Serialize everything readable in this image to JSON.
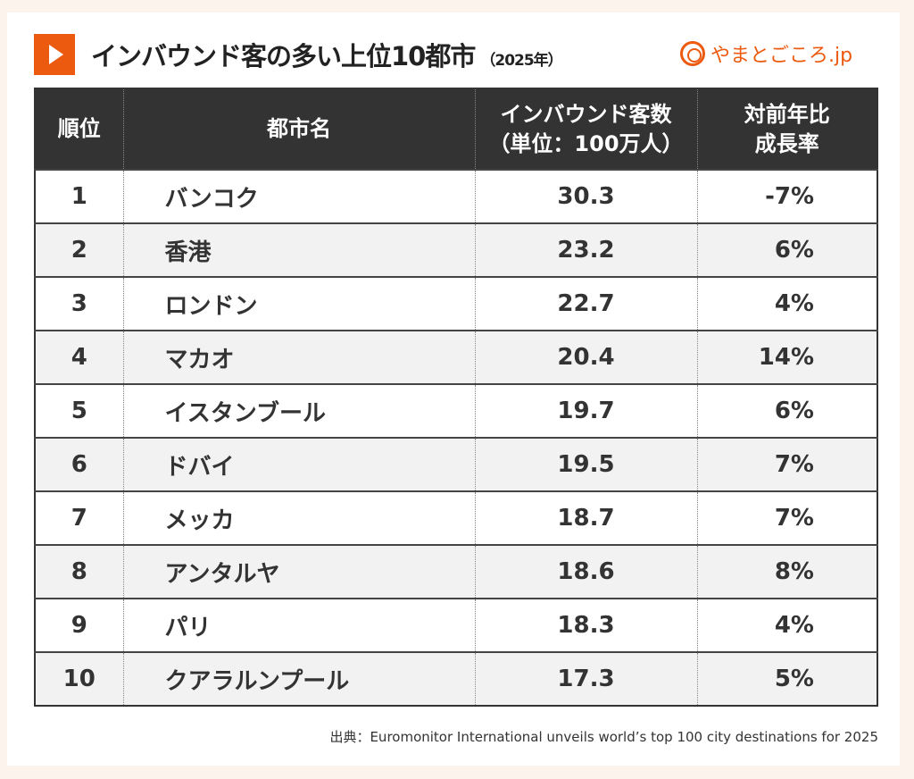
{
  "header": {
    "title": "インバウンド客の多い上位10都市",
    "year": "（2025年）",
    "logo_text": "やまとごころ.jp",
    "accent_color": "#ec5a10"
  },
  "chart_data": {
    "type": "table",
    "columns": [
      "順位",
      "都市名",
      "インバウンド客数",
      "（単位：100万人）",
      "対前年比",
      "成長率"
    ],
    "rows": [
      {
        "rank": "1",
        "city": "バンコク",
        "visitors": "30.3",
        "growth": "-7%"
      },
      {
        "rank": "2",
        "city": "香港",
        "visitors": "23.2",
        "growth": "6%"
      },
      {
        "rank": "3",
        "city": "ロンドン",
        "visitors": "22.7",
        "growth": "4%"
      },
      {
        "rank": "4",
        "city": "マカオ",
        "visitors": "20.4",
        "growth": "14%"
      },
      {
        "rank": "5",
        "city": "イスタンブール",
        "visitors": "19.7",
        "growth": "6%"
      },
      {
        "rank": "6",
        "city": "ドバイ",
        "visitors": "19.5",
        "growth": "7%"
      },
      {
        "rank": "7",
        "city": "メッカ",
        "visitors": "18.7",
        "growth": "7%"
      },
      {
        "rank": "8",
        "city": "アンタルヤ",
        "visitors": "18.6",
        "growth": "8%"
      },
      {
        "rank": "9",
        "city": "パリ",
        "visitors": "18.3",
        "growth": "4%"
      },
      {
        "rank": "10",
        "city": "クアラルンプール",
        "visitors": "17.3",
        "growth": "5%"
      }
    ]
  },
  "source": "出典：Euromonitor International unveils world’s top 100 city destinations for 2025"
}
